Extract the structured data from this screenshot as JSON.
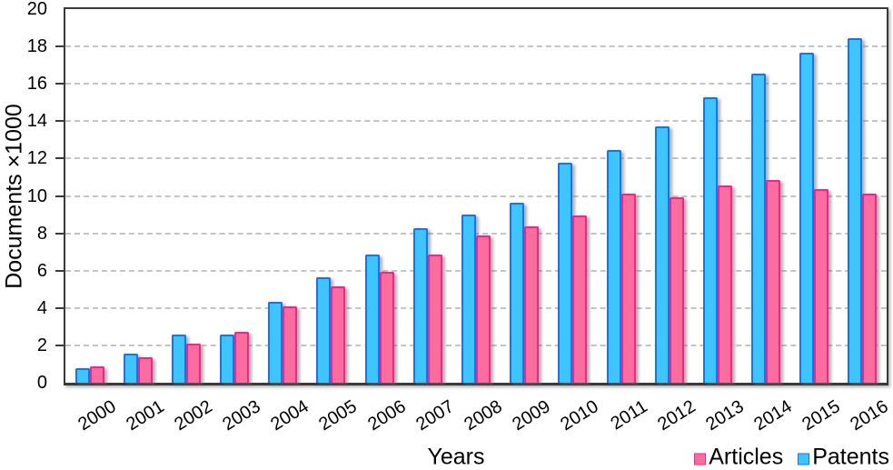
{
  "chart_data": {
    "type": "bar",
    "title": "",
    "xlabel": "Years",
    "ylabel": "Documents ×1000",
    "ylim": [
      0,
      20
    ],
    "ytick_step": 2,
    "grid": "horizontal-dashed",
    "legend_position": "bottom-right",
    "categories": [
      "2000",
      "2001",
      "2002",
      "2003",
      "2004",
      "2005",
      "2006",
      "2007",
      "2008",
      "2009",
      "2010",
      "2011",
      "2012",
      "2013",
      "2014",
      "2015",
      "2016"
    ],
    "series": [
      {
        "name": "Articles",
        "color": "#FB6C9F",
        "border_color": "#F3258C",
        "values": [
          0.9,
          1.35,
          2.1,
          2.75,
          4.1,
          5.15,
          5.95,
          6.85,
          7.9,
          8.35,
          8.95,
          10.1,
          9.95,
          10.55,
          10.85,
          10.35,
          10.1
        ]
      },
      {
        "name": "Patents",
        "color": "#3EC5FD",
        "border_color": "#1B73E9",
        "values": [
          0.8,
          1.55,
          2.6,
          2.6,
          4.35,
          5.65,
          6.85,
          8.25,
          9.0,
          9.65,
          11.8,
          12.45,
          13.7,
          15.3,
          16.55,
          17.65,
          18.45
        ]
      }
    ],
    "bar_draw_order": [
      "Patents",
      "Articles"
    ],
    "colors": {
      "axis": "#3a3a3a",
      "grid": "#c4c4c4",
      "text": "#000000",
      "background": "#ffffff"
    }
  }
}
